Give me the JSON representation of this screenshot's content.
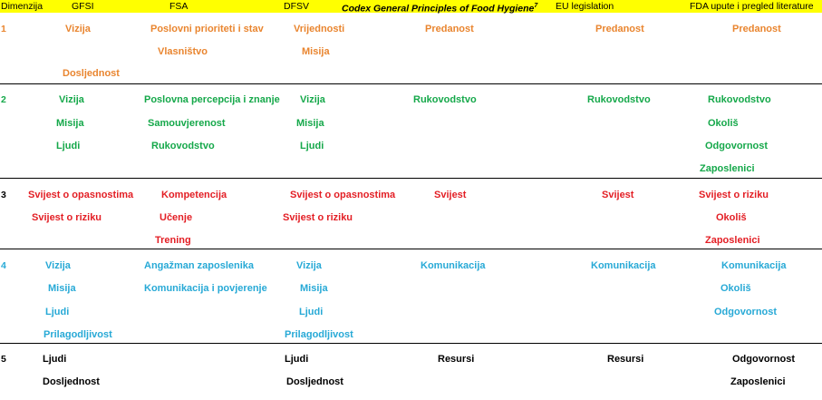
{
  "colors": {
    "header_bg": "#ffff00",
    "row1": "#e9852f",
    "row2": "#15a84a",
    "row3": "#e31e24",
    "row4": "#27a9d6",
    "row5": "#000000"
  },
  "headers": {
    "dimenzija": "Dimenzija",
    "gfsi": "GFSI",
    "fsa": "FSA",
    "dfsv": "DFSV",
    "codex": "Codex General Principles of Food Hygiene",
    "codex_sup": "7",
    "eu": "EU legislation",
    "fda": "FDA upute i pregled literature"
  },
  "rows": [
    {
      "num": "1",
      "gfsi": [
        "Vizija",
        "Dosljednost"
      ],
      "fsa": [
        "Poslovni prioriteti i stav",
        "Vlasništvo"
      ],
      "dfsv": [
        "Vrijednosti",
        "Misija"
      ],
      "codex": [
        "Predanost"
      ],
      "eu": [
        "Predanost"
      ],
      "fda": [
        "Predanost"
      ]
    },
    {
      "num": "2",
      "gfsi": [
        "Vizija",
        "Misija",
        "Ljudi"
      ],
      "fsa": [
        "Poslovna percepcija i znanje",
        "Samouvjerenost",
        "Rukovodstvo"
      ],
      "dfsv": [
        "Vizija",
        "Misija",
        "Ljudi"
      ],
      "codex": [
        "Rukovodstvo"
      ],
      "eu": [
        "Rukovodstvo"
      ],
      "fda": [
        "Rukovodstvo",
        "Okoliš",
        "Odgovornost",
        "Zaposlenici"
      ]
    },
    {
      "num": "3",
      "gfsi": [
        "Svijest o opasnostima",
        "Svijest o riziku"
      ],
      "fsa": [
        "Kompetencija",
        "Učenje",
        "Trening"
      ],
      "dfsv": [
        "Svijest o opasnostima",
        "Svijest o riziku"
      ],
      "codex": [
        "Svijest"
      ],
      "eu": [
        "Svijest"
      ],
      "fda": [
        "Svijest o riziku",
        "Okoliš",
        "Zaposlenici"
      ]
    },
    {
      "num": "4",
      "gfsi": [
        "Vizija",
        "Misija",
        "Ljudi",
        "Prilagodljivost"
      ],
      "fsa": [
        "Angažman zaposlenika",
        "Komunikacija i povjerenje"
      ],
      "dfsv": [
        "Vizija",
        "Misija",
        "Ljudi",
        "Prilagodljivost"
      ],
      "codex": [
        "Komunikacija"
      ],
      "eu": [
        "Komunikacija"
      ],
      "fda": [
        "Komunikacija",
        "Okoliš",
        "Odgovornost"
      ]
    },
    {
      "num": "5",
      "gfsi": [
        "Ljudi",
        "Dosljednost"
      ],
      "fsa": [],
      "dfsv": [
        "Ljudi",
        "Dosljednost"
      ],
      "codex": [
        "Resursi"
      ],
      "eu": [
        "Resursi"
      ],
      "fda": [
        "Odgovornost",
        "Zaposlenici"
      ]
    }
  ]
}
